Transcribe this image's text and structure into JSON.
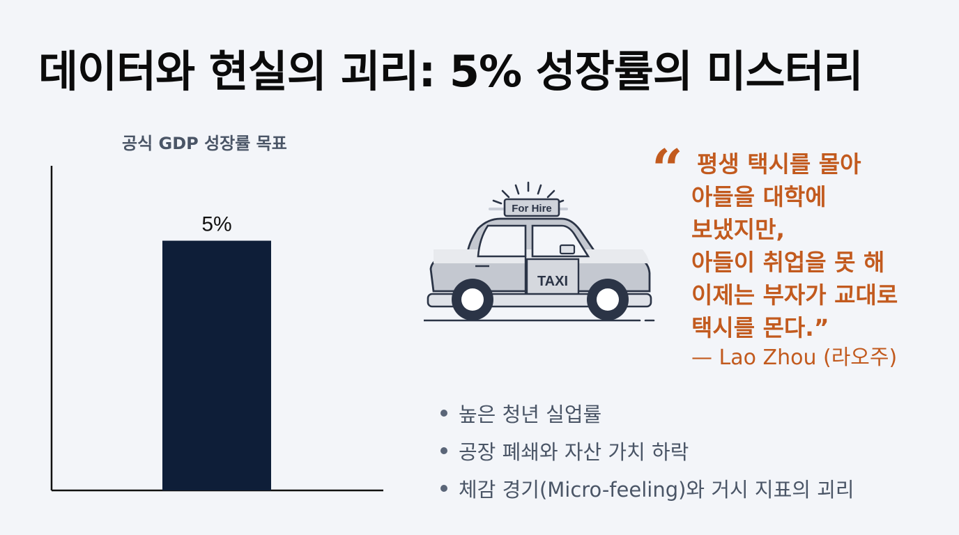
{
  "title": "데이터와 현실의 괴리: 5% 성장률의 미스터리",
  "chart_data": {
    "type": "bar",
    "title": "공식 GDP 성장률 목표",
    "categories": [
      ""
    ],
    "values": [
      5
    ],
    "data_labels": [
      "5%"
    ],
    "xlabel": "",
    "ylabel": "",
    "ylim": [
      0,
      6.5
    ],
    "grid": false,
    "bar_color": "#0e1e38"
  },
  "illustration": {
    "icon": "taxi-icon",
    "roof_sign": "For Hire",
    "door_label": "TAXI"
  },
  "quote": {
    "mark": "“",
    "lines": [
      "평생 택시를 몰아",
      "아들을 대학에",
      "보냈지만,",
      "아들이 취업을 못 해",
      "이제는 부자가 교대로",
      "택시를 몬다.”"
    ],
    "attribution": "— Lao Zhou (라오주)",
    "color": "#c25a1e"
  },
  "bullets": [
    "높은 청년 실업률",
    "공장 폐쇄와 자산 가치 하락",
    "체감 경기(Micro-feeling)와 거시 지표의 괴리"
  ]
}
